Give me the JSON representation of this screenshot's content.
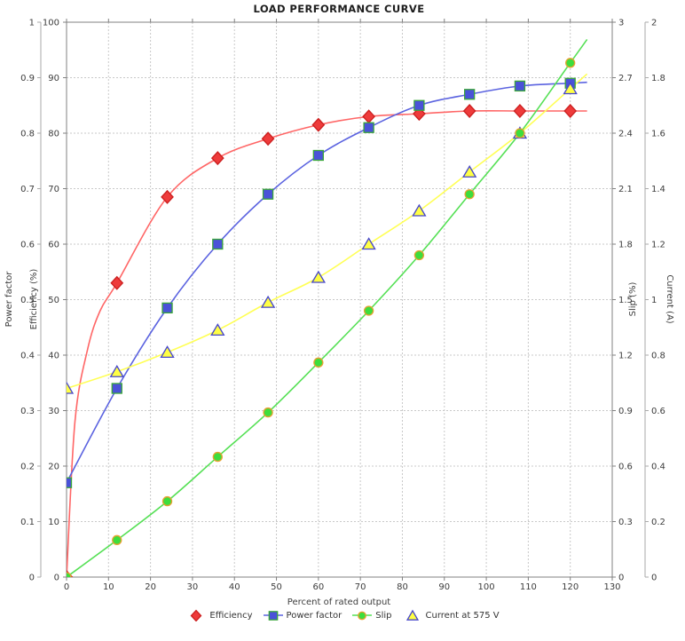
{
  "title": "LOAD PERFORMANCE CURVE",
  "chart_data": {
    "type": "line",
    "title": "LOAD PERFORMANCE CURVE",
    "xlabel": "Percent of rated output",
    "grid": "dotted",
    "legend_position": "bottom",
    "x_axis": {
      "min": 0,
      "max": 130,
      "ticks": [
        0,
        10,
        20,
        30,
        40,
        50,
        60,
        70,
        80,
        90,
        100,
        110,
        120,
        130
      ]
    },
    "x": [
      0,
      12,
      24,
      36,
      48,
      60,
      72,
      84,
      96,
      108,
      120
    ],
    "axes": [
      {
        "id": "power_factor",
        "label": "Power factor",
        "side": "left_outer",
        "min": 0,
        "max": 1,
        "ticks": [
          0,
          0.1,
          0.2,
          0.3,
          0.4,
          0.5,
          0.6,
          0.7,
          0.8,
          0.9,
          1
        ]
      },
      {
        "id": "efficiency",
        "label": "Efficiency (%)",
        "side": "left_inner",
        "min": 0,
        "max": 100,
        "ticks": [
          0,
          10,
          20,
          30,
          40,
          50,
          60,
          70,
          80,
          90,
          100
        ]
      },
      {
        "id": "slip",
        "label": "Slip (%)",
        "side": "right_inner",
        "min": 0,
        "max": 3,
        "ticks": [
          0,
          0.3,
          0.6,
          0.9,
          1.2,
          1.5,
          1.8,
          2.1,
          2.4,
          2.7,
          3
        ]
      },
      {
        "id": "current",
        "label": "Current (A)",
        "side": "right_outer",
        "min": 0,
        "max": 2,
        "ticks": [
          0,
          0.2,
          0.4,
          0.6,
          0.8,
          1,
          1.2,
          1.4,
          1.6,
          1.8,
          2
        ]
      }
    ],
    "series": [
      {
        "name": "Efficiency",
        "axis": "efficiency",
        "marker": "diamond",
        "marker_fill": "#ee3b3b",
        "marker_edge": "#cc1f1f",
        "line_color": "#ff6666",
        "values": [
          0,
          53,
          68.5,
          75.5,
          79,
          81.5,
          83,
          83.5,
          84,
          84,
          84
        ],
        "fit_shape_points": [
          [
            2,
            28
          ],
          [
            5,
            41
          ],
          [
            8,
            48
          ]
        ]
      },
      {
        "name": "Power factor",
        "axis": "power_factor",
        "marker": "square",
        "marker_fill": "#4a52d8",
        "marker_edge": "#3aa63a",
        "line_color": "#5b63e0",
        "values": [
          0.17,
          0.34,
          0.485,
          0.6,
          0.69,
          0.76,
          0.81,
          0.85,
          0.87,
          0.885,
          0.89
        ]
      },
      {
        "name": "Slip",
        "axis": "slip",
        "marker": "circle",
        "marker_fill": "#3ddd3d",
        "marker_edge": "#e8a030",
        "line_color": "#55e055",
        "values": [
          0,
          0.2,
          0.41,
          0.65,
          0.89,
          1.16,
          1.44,
          1.74,
          2.07,
          2.4,
          2.78
        ]
      },
      {
        "name": "Current at 575 V",
        "axis": "current",
        "marker": "triangle",
        "marker_fill": "#ffff44",
        "marker_edge": "#4646cc",
        "line_color": "#ffff55",
        "values": [
          0.68,
          0.74,
          0.81,
          0.89,
          0.99,
          1.08,
          1.2,
          1.32,
          1.46,
          1.6,
          1.76
        ]
      }
    ]
  }
}
